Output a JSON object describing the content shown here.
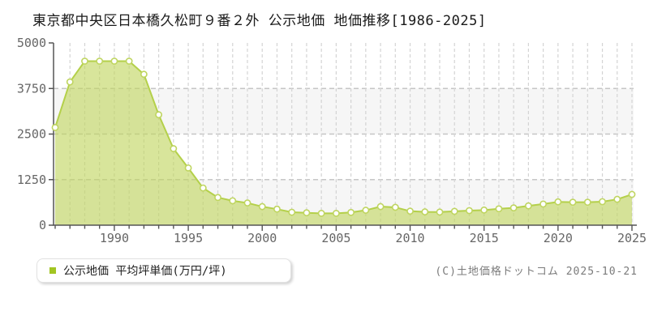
{
  "title": {
    "text": "東京都中央区日本橋久松町９番２外 公示地価 地価推移[1986-2025]"
  },
  "legend": {
    "label": "公示地価 平均坪単価(万円/坪)",
    "marker_color": "#a2c522",
    "marker_style": "background:#a2c522"
  },
  "copyright": {
    "text": "(C)土地価格ドットコム 2025-10-21"
  },
  "chart_data": {
    "type": "area",
    "title": "東京都中央区日本橋久松町９番２外 公示地価 地価推移[1986-2025]",
    "series_name": "公示地価 平均坪単価(万円/坪)",
    "xlabel": "",
    "ylabel": "万円/坪",
    "x": [
      1986,
      1987,
      1988,
      1989,
      1990,
      1991,
      1992,
      1993,
      1994,
      1995,
      1996,
      1997,
      1998,
      1999,
      2000,
      2001,
      2002,
      2003,
      2004,
      2005,
      2006,
      2007,
      2008,
      2009,
      2010,
      2011,
      2012,
      2013,
      2014,
      2015,
      2016,
      2017,
      2018,
      2019,
      2020,
      2021,
      2022,
      2023,
      2024,
      2025
    ],
    "values": [
      2680,
      3930,
      4500,
      4500,
      4500,
      4500,
      4140,
      3030,
      2100,
      1570,
      1020,
      760,
      670,
      610,
      510,
      440,
      355,
      340,
      325,
      325,
      350,
      410,
      510,
      490,
      385,
      365,
      360,
      380,
      400,
      415,
      450,
      475,
      530,
      580,
      640,
      630,
      630,
      645,
      710,
      845
    ],
    "ylim": [
      0,
      5000
    ],
    "yticks": [
      0,
      1250,
      2500,
      3750,
      5000
    ],
    "xticks": [
      1990,
      1995,
      2000,
      2005,
      2010,
      2015,
      2020,
      2025
    ],
    "grid": "dashed, vertical per year, horizontal per ytick, alternating bands",
    "legend_position": "bottom-left",
    "colors": {
      "area_fill": "#c0d55e",
      "area_opacity": "0.62",
      "line": "#b4d04a",
      "marker_fill": "#ffffff",
      "marker_stroke": "#bfd560",
      "grid_vertical": "#d4d4d4",
      "grid_horizontal": "#c6c6c6",
      "band": "#f6f6f6",
      "axis": "#555555",
      "tick_label": "#666666"
    }
  }
}
